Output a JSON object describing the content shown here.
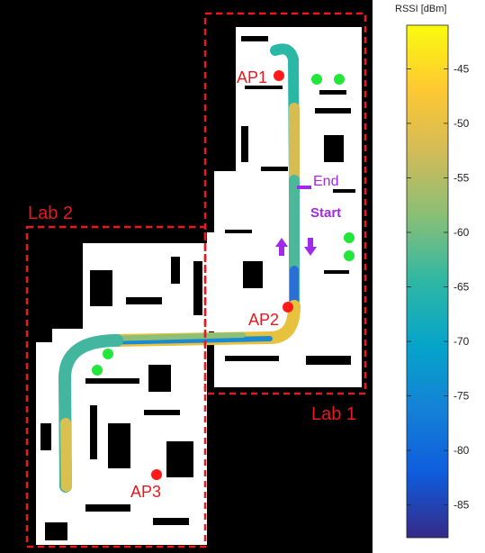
{
  "map": {
    "regions": [
      {
        "label": "Lab 1",
        "color": "#e8191f"
      },
      {
        "label": "Lab 2",
        "color": "#e8191f"
      }
    ],
    "access_points": [
      {
        "label": "AP1",
        "color": "#ff1a1a"
      },
      {
        "label": "AP2",
        "color": "#ff1a1a"
      },
      {
        "label": "AP3",
        "color": "#ff1a1a"
      }
    ],
    "markers": {
      "end_label": "End",
      "start_label": "Start",
      "marker_color": "#a12ae6"
    },
    "green_point_color": "#22e63a",
    "background_color": "#000000",
    "floorplan_color": "#ffffff"
  },
  "colorbar": {
    "title": "RSSI [dBm]",
    "min": -88,
    "max": -41,
    "ticks": [
      -45,
      -50,
      -55,
      -60,
      -65,
      -70,
      -75,
      -80,
      -85
    ],
    "colormap": "parula",
    "colormap_stops": [
      "#352a87",
      "#0f5cdd",
      "#1481d6",
      "#06a4ca",
      "#2eb7a4",
      "#87bf77",
      "#d1bb59",
      "#fec832",
      "#f9fb0e"
    ]
  }
}
